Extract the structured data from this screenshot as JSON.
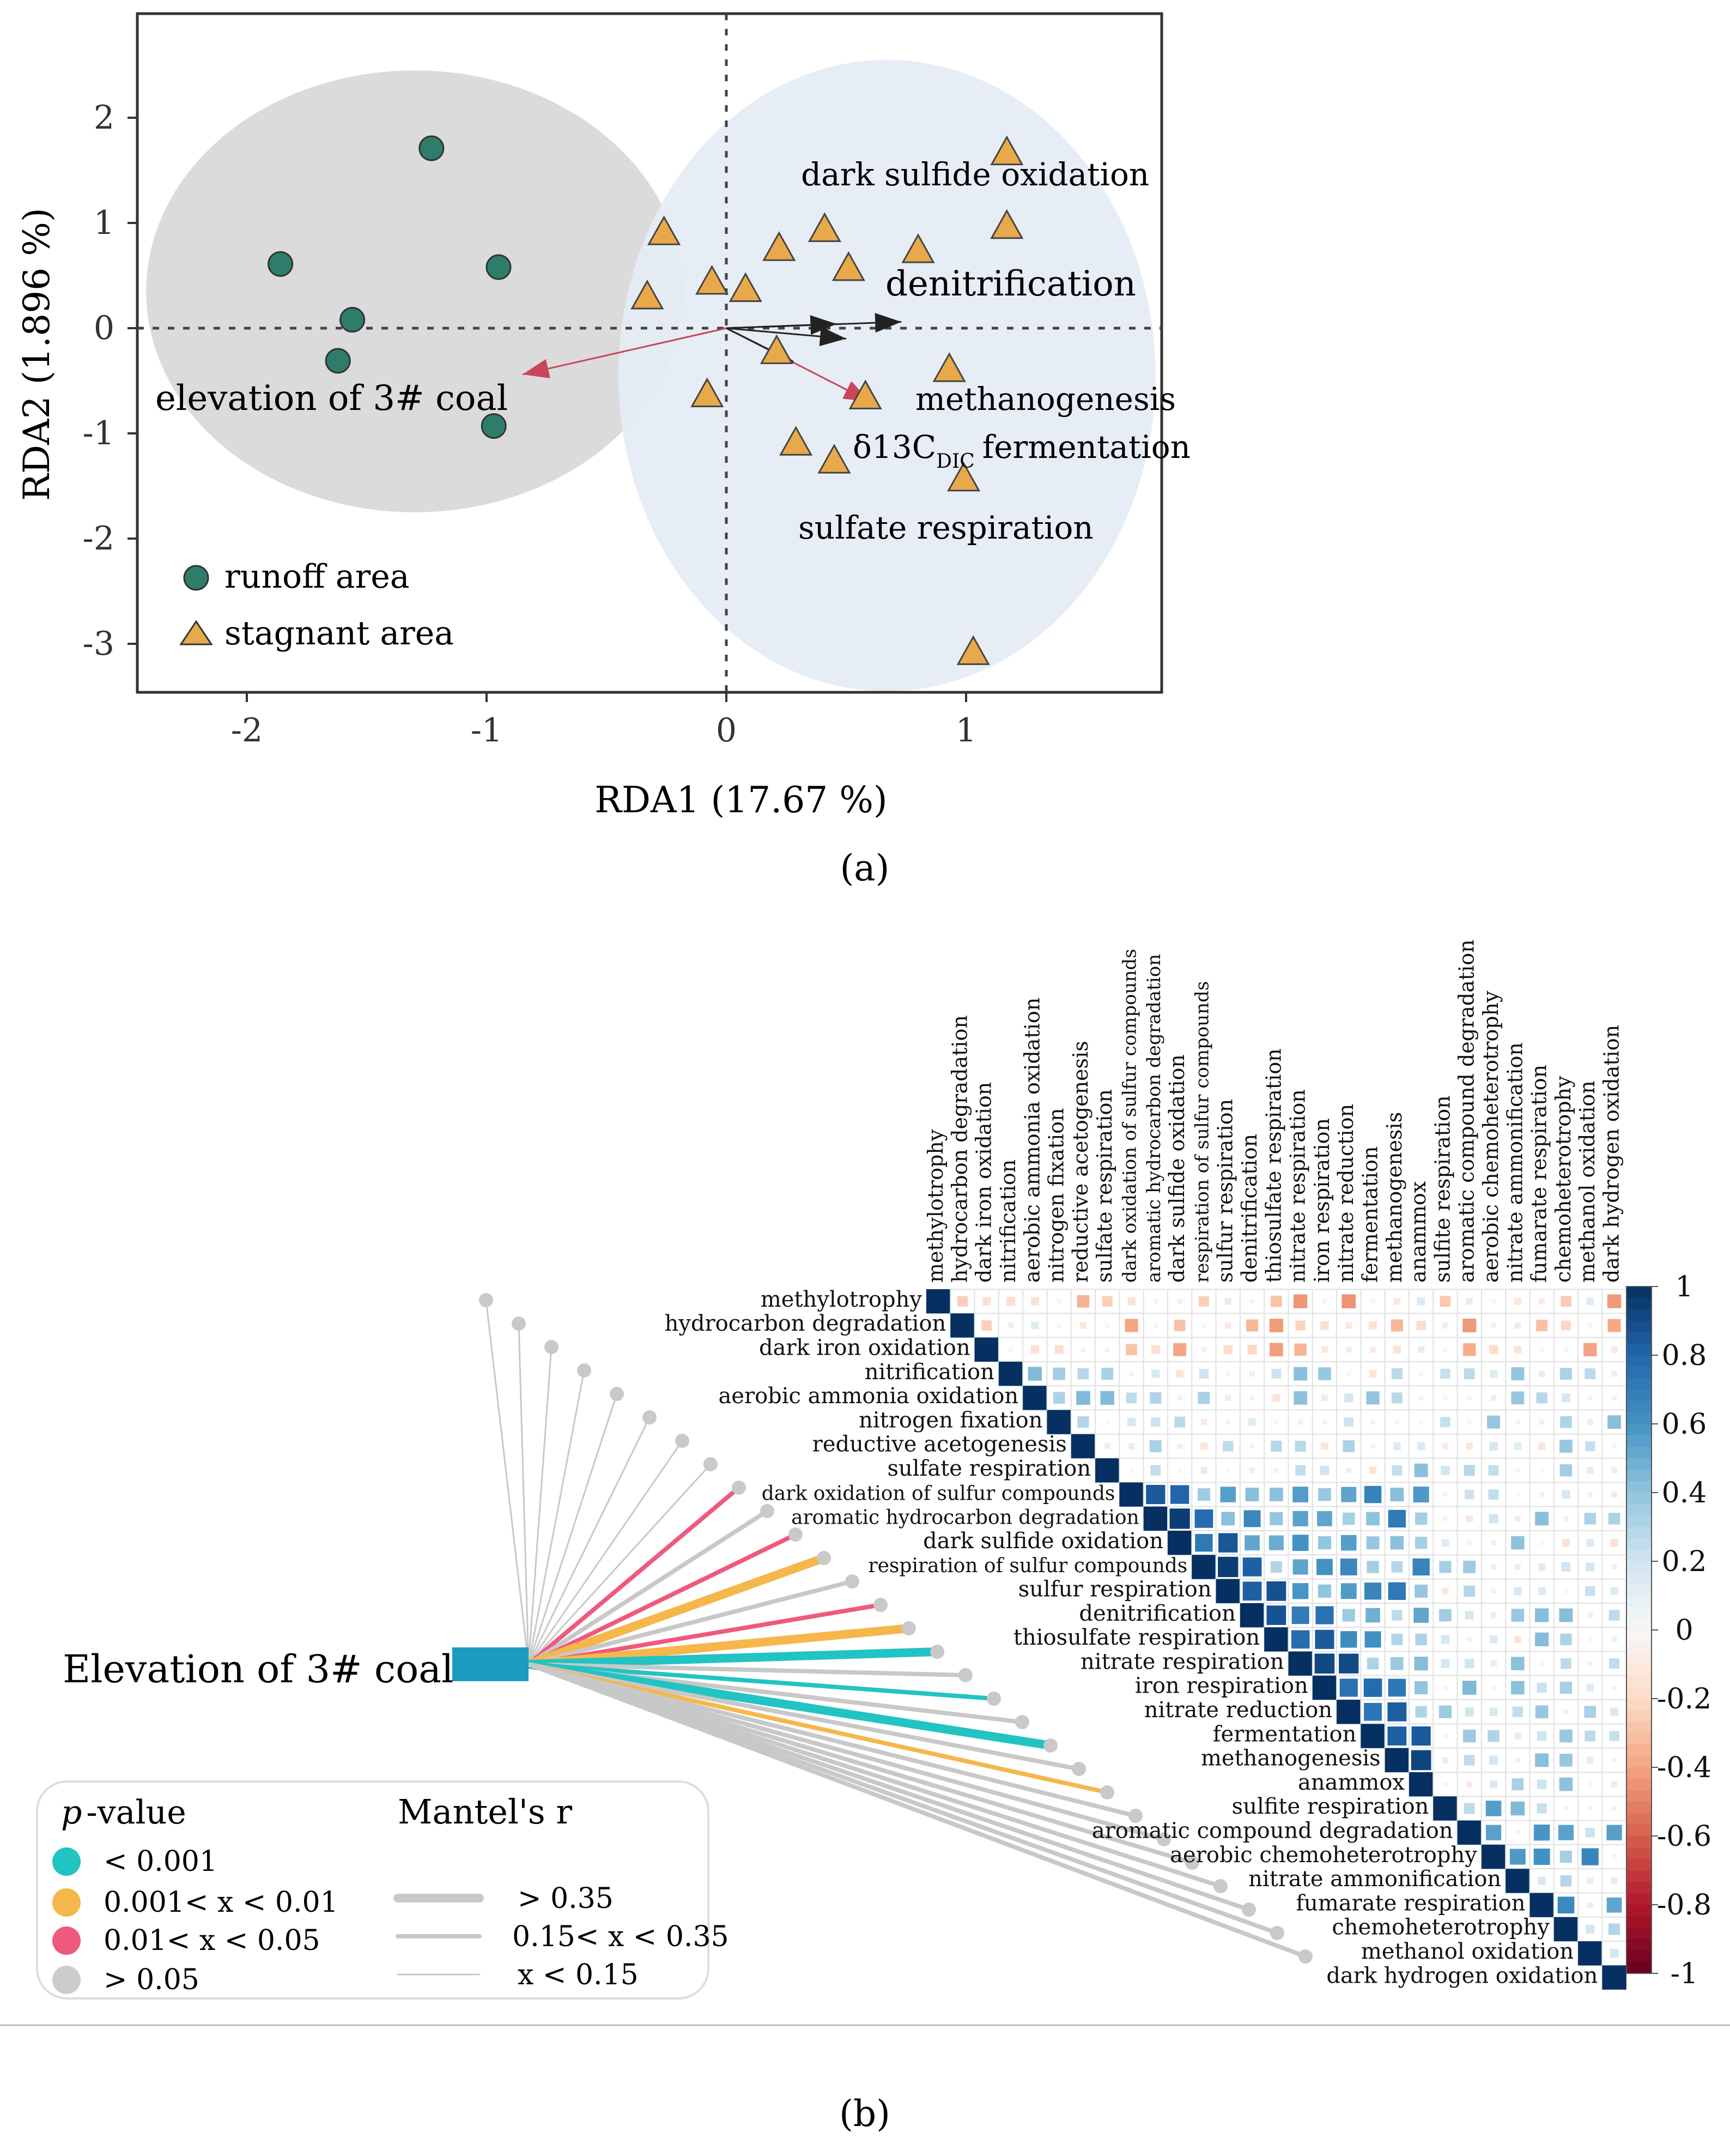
{
  "chart_data": [
    {
      "type": "scatter",
      "panel_label": "(a)",
      "xlabel": "RDA1 (17.67 %)",
      "ylabel": "RDA2 (1.896 %)",
      "xlim": [
        -2.5,
        1.8
      ],
      "ylim": [
        -3.4,
        3.0
      ],
      "xticks": [
        -2,
        -1,
        0,
        1
      ],
      "yticks": [
        2,
        1,
        0,
        -1,
        -2,
        -3
      ],
      "series": [
        {
          "name": "runoff area",
          "marker": "circle",
          "color": "#2e7d6b",
          "points": [
            [
              -1.23,
              1.71
            ],
            [
              -1.86,
              0.61
            ],
            [
              -0.95,
              0.58
            ],
            [
              -1.56,
              0.08
            ],
            [
              -1.62,
              -0.31
            ],
            [
              -0.97,
              -0.93
            ]
          ]
        },
        {
          "name": "stagnant area",
          "marker": "triangle",
          "color": "#e8a94a",
          "points": [
            [
              1.17,
              1.66
            ],
            [
              1.17,
              0.96
            ],
            [
              -0.26,
              0.9
            ],
            [
              0.41,
              0.93
            ],
            [
              0.22,
              0.75
            ],
            [
              0.8,
              0.73
            ],
            [
              0.51,
              0.56
            ],
            [
              -0.06,
              0.43
            ],
            [
              0.08,
              0.36
            ],
            [
              -0.33,
              0.29
            ],
            [
              0.21,
              -0.23
            ],
            [
              0.93,
              -0.4
            ],
            [
              -0.08,
              -0.64
            ],
            [
              0.58,
              -0.66
            ],
            [
              0.29,
              -1.1
            ],
            [
              0.45,
              -1.27
            ],
            [
              0.99,
              -1.44
            ],
            [
              1.03,
              -3.09
            ]
          ]
        }
      ],
      "ellipses": [
        {
          "group": "runoff area",
          "color": "#d9d9d9",
          "center": [
            -1.3,
            0.35
          ],
          "rx": 1.12,
          "ry": 2.1
        },
        {
          "group": "stagnant area",
          "color": "#e6ecf4",
          "center": [
            0.67,
            -0.45
          ],
          "rx": 1.12,
          "ry": 3.0
        }
      ],
      "arrows": [
        {
          "label": "elevation of 3# coal",
          "color": "#c8455a",
          "end": [
            -0.85,
            -0.44
          ]
        },
        {
          "label": "δ13C DIC",
          "color": "#c8455a",
          "end": [
            0.6,
            -0.7
          ]
        },
        {
          "label": "denitrification",
          "color": "#222222",
          "end": [
            0.73,
            0.06
          ]
        },
        {
          "label": "",
          "color": "#222222",
          "end": [
            0.46,
            0.04
          ]
        },
        {
          "label": "",
          "color": "#222222",
          "end": [
            0.5,
            -0.1
          ]
        },
        {
          "label": "",
          "color": "#222222",
          "end": [
            0.28,
            -0.32
          ]
        }
      ],
      "annotations": [
        "dark sulfide oxidation",
        "denitrification",
        "elevation of 3# coal",
        "methanogenesis",
        "δ13C",
        "DIC",
        "fermentation",
        "sulfate respiration"
      ]
    },
    {
      "type": "heatmap",
      "panel_label": "(b)",
      "title": "Elevation of 3# coal",
      "labels": [
        "methylotrophy",
        "hydrocarbon degradation",
        "dark iron oxidation",
        "nitrification",
        "aerobic ammonia oxidation",
        "nitrogen fixation",
        "reductive acetogenesis",
        "sulfate respiration",
        "dark oxidation of sulfur compounds",
        "aromatic hydrocarbon degradation",
        "dark sulfide oxidation",
        "respiration of sulfur compounds",
        "sulfur respiration",
        "denitrification",
        "thiosulfate respiration",
        "nitrate respiration",
        "iron respiration",
        "nitrate reduction",
        "fermentation",
        "methanogenesis",
        "anammox",
        "sulfite respiration",
        "aromatic compound degradation",
        "aerobic chemoheterotrophy",
        "nitrate ammonification",
        "fumarate respiration",
        "chemoheterotrophy",
        "methanol oxidation",
        "dark hydrogen oxidation"
      ],
      "colorbar_ticks": [
        "1",
        "0.8",
        "0.6",
        "0.4",
        "0.2",
        "0",
        "-0.2",
        "-0.4",
        "-0.6",
        "-0.8",
        "-1"
      ],
      "mantel_links": [
        {
          "target": "methylotrophy",
          "p": "> 0.05",
          "r": "x < 0.15"
        },
        {
          "target": "hydrocarbon degradation",
          "p": "> 0.05",
          "r": "x < 0.15"
        },
        {
          "target": "dark iron oxidation",
          "p": "> 0.05",
          "r": "x < 0.15"
        },
        {
          "target": "nitrification",
          "p": "> 0.05",
          "r": "x < 0.15"
        },
        {
          "target": "aerobic ammonia oxidation",
          "p": "> 0.05",
          "r": "x < 0.15"
        },
        {
          "target": "nitrogen fixation",
          "p": "> 0.05",
          "r": "x < 0.15"
        },
        {
          "target": "reductive acetogenesis",
          "p": "> 0.05",
          "r": "x < 0.15"
        },
        {
          "target": "sulfate respiration",
          "p": "> 0.05",
          "r": "x < 0.15"
        },
        {
          "target": "dark oxidation of sulfur compounds",
          "p": "0.01< x < 0.05",
          "r": "0.15< x < 0.35"
        },
        {
          "target": "aromatic hydrocarbon degradation",
          "p": "> 0.05",
          "r": "0.15< x < 0.35"
        },
        {
          "target": "dark sulfide oxidation",
          "p": "0.01< x < 0.05",
          "r": "0.15< x < 0.35"
        },
        {
          "target": "respiration of sulfur compounds",
          "p": "0.001< x < 0.01",
          "r": "> 0.35"
        },
        {
          "target": "sulfur respiration",
          "p": "> 0.05",
          "r": "0.15< x < 0.35"
        },
        {
          "target": "denitrification",
          "p": "0.01< x < 0.05",
          "r": "0.15< x < 0.35"
        },
        {
          "target": "thiosulfate respiration",
          "p": "0.001< x < 0.01",
          "r": "> 0.35"
        },
        {
          "target": "nitrate respiration",
          "p": "< 0.001",
          "r": "> 0.35"
        },
        {
          "target": "iron respiration",
          "p": "> 0.05",
          "r": "0.15< x < 0.35"
        },
        {
          "target": "nitrate reduction",
          "p": "< 0.001",
          "r": "0.15< x < 0.35"
        },
        {
          "target": "fermentation",
          "p": "> 0.05",
          "r": "0.15< x < 0.35"
        },
        {
          "target": "methanogenesis",
          "p": "< 0.001",
          "r": "> 0.35"
        },
        {
          "target": "anammox",
          "p": "> 0.05",
          "r": "0.15< x < 0.35"
        },
        {
          "target": "sulfite respiration",
          "p": "0.001< x < 0.01",
          "r": "0.15< x < 0.35"
        },
        {
          "target": "aromatic compound degradation",
          "p": "> 0.05",
          "r": "0.15< x < 0.35"
        },
        {
          "target": "aerobic chemoheterotrophy",
          "p": "> 0.05",
          "r": "0.15< x < 0.35"
        },
        {
          "target": "nitrate ammonification",
          "p": "> 0.05",
          "r": "0.15< x < 0.35"
        },
        {
          "target": "fumarate respiration",
          "p": "> 0.05",
          "r": "0.15< x < 0.35"
        },
        {
          "target": "chemoheterotrophy",
          "p": "> 0.05",
          "r": "0.15< x < 0.35"
        },
        {
          "target": "methanol oxidation",
          "p": "> 0.05",
          "r": "0.15< x < 0.35"
        },
        {
          "target": "dark hydrogen oxidation",
          "p": "> 0.05",
          "r": "0.15< x < 0.35"
        }
      ],
      "legend_p": {
        "title": "-value",
        "title_symbol": "p",
        "items": [
          {
            "label": "< 0.001",
            "color": "#22c3c3"
          },
          {
            "label": "0.001< x < 0.01",
            "color": "#f5b74b"
          },
          {
            "label": "0.01< x < 0.05",
            "color": "#ee5a7c"
          },
          {
            "label": "> 0.05",
            "color": "#cccccc"
          }
        ]
      },
      "legend_r": {
        "title": "Mantel's r",
        "items": [
          {
            "label": "> 0.35"
          },
          {
            "label": "0.15< x < 0.35"
          },
          {
            "label": "x < 0.15"
          }
        ]
      }
    }
  ]
}
